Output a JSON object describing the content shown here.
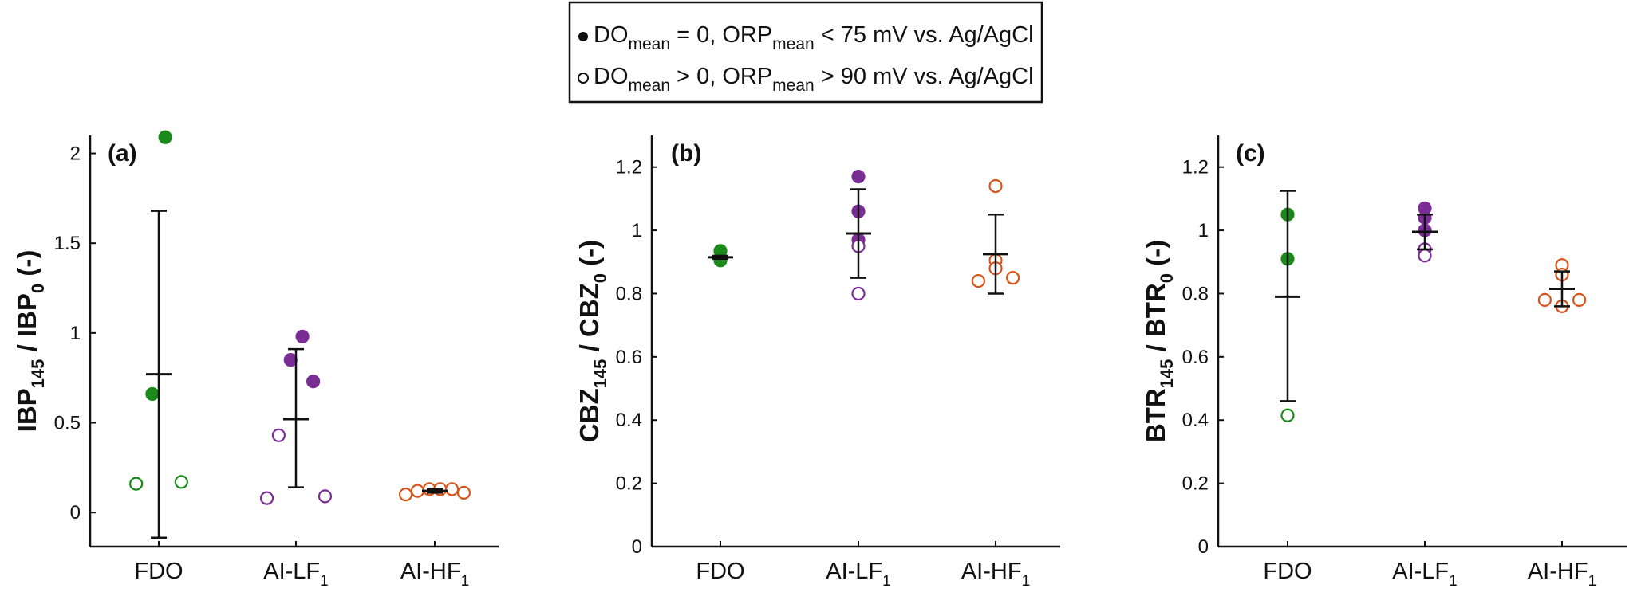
{
  "colors": {
    "FDO": "#1a8a1a",
    "AI-LF1": "#7b2d96",
    "AI-HF1": "#d9541a",
    "axis": "#111111",
    "legend_border": "#111111"
  },
  "legend": {
    "filled_label": {
      "a": "DO",
      "a_sub": "mean",
      "b": " = 0, ORP",
      "b_sub": "mean",
      "c": " < 75 mV vs. Ag/AgCl"
    },
    "open_label": {
      "a": "DO",
      "a_sub": "mean",
      "b": " > 0, ORP",
      "b_sub": "mean",
      "c": " > 90 mV vs. Ag/AgCl"
    }
  },
  "chart_data": [
    {
      "type": "scatter",
      "panel_label": "(a)",
      "ylabel": {
        "main": "IBP",
        "sub1": "145",
        "mid": " / IBP",
        "sub2": "0",
        "tail": " (-)"
      },
      "ylim": [
        -0.19,
        2.1
      ],
      "yticks": [
        0,
        0.5,
        1,
        1.5,
        2
      ],
      "ytick_labels": [
        "0",
        "0.5",
        "1",
        "1.5",
        "2"
      ],
      "categories": [
        {
          "main": "FDO",
          "sub": ""
        },
        {
          "main": "AI-LF",
          "sub": "1"
        },
        {
          "main": "AI-HF",
          "sub": "1"
        }
      ],
      "groups": [
        {
          "category": "FDO",
          "mean": 0.77,
          "err_low": -0.14,
          "err_high": 1.68,
          "points": [
            {
              "y": 2.09,
              "filled": true,
              "offset": 0.06
            },
            {
              "y": 0.66,
              "filled": true,
              "offset": -0.06
            },
            {
              "y": 0.16,
              "filled": false,
              "offset": -0.21
            },
            {
              "y": 0.17,
              "filled": false,
              "offset": 0.21
            }
          ]
        },
        {
          "category": "AI-LF1",
          "mean": 0.52,
          "err_low": 0.14,
          "err_high": 0.91,
          "points": [
            {
              "y": 0.98,
              "filled": true,
              "offset": 0.06
            },
            {
              "y": 0.85,
              "filled": true,
              "offset": -0.05
            },
            {
              "y": 0.73,
              "filled": true,
              "offset": 0.16
            },
            {
              "y": 0.43,
              "filled": false,
              "offset": -0.16
            },
            {
              "y": 0.08,
              "filled": false,
              "offset": -0.27
            },
            {
              "y": 0.09,
              "filled": false,
              "offset": 0.27
            }
          ]
        },
        {
          "category": "AI-HF1",
          "mean": 0.12,
          "err_low": 0.11,
          "err_high": 0.13,
          "points": [
            {
              "y": 0.1,
              "filled": false,
              "offset": -0.27
            },
            {
              "y": 0.12,
              "filled": false,
              "offset": -0.16
            },
            {
              "y": 0.13,
              "filled": false,
              "offset": -0.05
            },
            {
              "y": 0.13,
              "filled": false,
              "offset": 0.05
            },
            {
              "y": 0.13,
              "filled": false,
              "offset": 0.16
            },
            {
              "y": 0.11,
              "filled": false,
              "offset": 0.27
            }
          ]
        }
      ]
    },
    {
      "type": "scatter",
      "panel_label": "(b)",
      "ylabel": {
        "main": "CBZ",
        "sub1": "145",
        "mid": " / CBZ",
        "sub2": "0",
        "tail": " (-)"
      },
      "ylim": [
        0,
        1.3
      ],
      "yticks": [
        0,
        0.2,
        0.4,
        0.6,
        0.8,
        1,
        1.2
      ],
      "ytick_labels": [
        "0",
        "0.2",
        "0.4",
        "0.6",
        "0.8",
        "1",
        "1.2"
      ],
      "categories": [
        {
          "main": "FDO",
          "sub": ""
        },
        {
          "main": "AI-LF",
          "sub": "1"
        },
        {
          "main": "AI-HF",
          "sub": "1"
        }
      ],
      "groups": [
        {
          "category": "FDO",
          "mean": 0.915,
          "err_low": 0.91,
          "err_high": 0.92,
          "points": [
            {
              "y": 0.935,
              "filled": true,
              "offset": 0
            },
            {
              "y": 0.905,
              "filled": true,
              "offset": 0
            }
          ]
        },
        {
          "category": "AI-LF1",
          "mean": 0.99,
          "err_low": 0.85,
          "err_high": 1.13,
          "points": [
            {
              "y": 1.17,
              "filled": true,
              "offset": 0
            },
            {
              "y": 1.06,
              "filled": true,
              "offset": 0
            },
            {
              "y": 0.97,
              "filled": true,
              "offset": 0
            },
            {
              "y": 0.95,
              "filled": false,
              "offset": 0
            },
            {
              "y": 0.8,
              "filled": false,
              "offset": 0
            }
          ]
        },
        {
          "category": "AI-HF1",
          "mean": 0.925,
          "err_low": 0.8,
          "err_high": 1.05,
          "points": [
            {
              "y": 1.14,
              "filled": false,
              "offset": 0
            },
            {
              "y": 0.905,
              "filled": false,
              "offset": 0
            },
            {
              "y": 0.88,
              "filled": false,
              "offset": 0
            },
            {
              "y": 0.84,
              "filled": false,
              "offset": -0.16
            },
            {
              "y": 0.85,
              "filled": false,
              "offset": 0.16
            }
          ]
        }
      ]
    },
    {
      "type": "scatter",
      "panel_label": "(c)",
      "ylabel": {
        "main": "BTR",
        "sub1": "145",
        "mid": " / BTR",
        "sub2": "0",
        "tail": " (-)"
      },
      "ylim": [
        0,
        1.3
      ],
      "yticks": [
        0,
        0.2,
        0.4,
        0.6,
        0.8,
        1,
        1.2
      ],
      "ytick_labels": [
        "0",
        "0.2",
        "0.4",
        "0.6",
        "0.8",
        "1",
        "1.2"
      ],
      "categories": [
        {
          "main": "FDO",
          "sub": ""
        },
        {
          "main": "AI-LF",
          "sub": "1"
        },
        {
          "main": "AI-HF",
          "sub": "1"
        }
      ],
      "groups": [
        {
          "category": "FDO",
          "mean": 0.79,
          "err_low": 0.46,
          "err_high": 1.125,
          "points": [
            {
              "y": 1.05,
              "filled": true,
              "offset": 0
            },
            {
              "y": 0.91,
              "filled": true,
              "offset": 0
            },
            {
              "y": 0.415,
              "filled": false,
              "offset": 0
            }
          ]
        },
        {
          "category": "AI-LF1",
          "mean": 0.995,
          "err_low": 0.94,
          "err_high": 1.05,
          "points": [
            {
              "y": 1.07,
              "filled": true,
              "offset": 0
            },
            {
              "y": 1.04,
              "filled": true,
              "offset": 0
            },
            {
              "y": 1.0,
              "filled": true,
              "offset": 0
            },
            {
              "y": 0.94,
              "filled": false,
              "offset": 0
            },
            {
              "y": 0.92,
              "filled": false,
              "offset": 0
            }
          ]
        },
        {
          "category": "AI-HF1",
          "mean": 0.815,
          "err_low": 0.76,
          "err_high": 0.87,
          "points": [
            {
              "y": 0.89,
              "filled": false,
              "offset": 0
            },
            {
              "y": 0.86,
              "filled": false,
              "offset": 0
            },
            {
              "y": 0.78,
              "filled": false,
              "offset": -0.16
            },
            {
              "y": 0.78,
              "filled": false,
              "offset": 0.16
            },
            {
              "y": 0.76,
              "filled": false,
              "offset": 0
            }
          ]
        }
      ]
    }
  ]
}
